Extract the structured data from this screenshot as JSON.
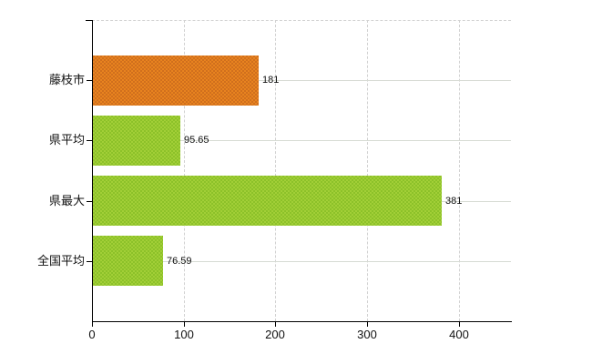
{
  "chart_data": {
    "type": "bar",
    "orientation": "horizontal",
    "title": "",
    "xlabel": "",
    "ylabel": "",
    "categories": [
      "藤枝市",
      "県平均",
      "県最大",
      "全国平均"
    ],
    "values": [
      181,
      95.65,
      381,
      76.59
    ],
    "value_labels": [
      "181",
      "95.65",
      "381",
      "76.59"
    ],
    "x_ticks": [
      0,
      100,
      200,
      300,
      400
    ],
    "x_tick_labels": [
      "0",
      "100",
      "200",
      "300",
      "400"
    ],
    "xlim": [
      0,
      458
    ],
    "grid": true,
    "legend_position": "none",
    "bar_styles": [
      {
        "name": "city-bar-orange",
        "base": "#e8831f",
        "alt": "#d06f1d"
      },
      {
        "name": "stat-bar-green",
        "base": "#a2cf37",
        "alt": "#8cc129"
      },
      {
        "name": "stat-bar-green",
        "base": "#a2cf37",
        "alt": "#8cc129"
      },
      {
        "name": "stat-bar-green",
        "base": "#a2cf37",
        "alt": "#8cc129"
      }
    ]
  },
  "colors": {
    "axis": "#000000",
    "gridline_dashed": "#d2d2d2",
    "gridline_solid": "#d7dbd4",
    "text": "#111111",
    "background": "#ffffff",
    "bar_orange": "#e07c22",
    "bar_green": "#9aca33"
  }
}
